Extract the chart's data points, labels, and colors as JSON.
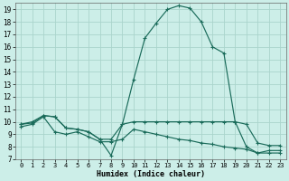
{
  "xlabel": "Humidex (Indice chaleur)",
  "background_color": "#cceee8",
  "grid_color": "#aad4cc",
  "line_color": "#1a6b5a",
  "xlim": [
    -0.5,
    23.5
  ],
  "ylim": [
    7,
    19.5
  ],
  "xticks": [
    0,
    1,
    2,
    3,
    4,
    5,
    6,
    7,
    8,
    9,
    10,
    11,
    12,
    13,
    14,
    15,
    16,
    17,
    18,
    19,
    20,
    21,
    22,
    23
  ],
  "yticks": [
    7,
    8,
    9,
    10,
    11,
    12,
    13,
    14,
    15,
    16,
    17,
    18,
    19
  ],
  "line1_x": [
    0,
    1,
    2,
    3,
    4,
    5,
    6,
    7,
    8,
    9,
    10,
    11,
    12,
    13,
    14,
    15,
    16,
    17,
    18,
    19,
    20,
    21,
    22,
    23
  ],
  "line1_y": [
    9.8,
    10.0,
    10.5,
    10.4,
    9.5,
    9.4,
    9.2,
    8.6,
    8.6,
    9.8,
    10.0,
    10.0,
    10.0,
    10.0,
    10.0,
    10.0,
    10.0,
    10.0,
    10.0,
    10.0,
    9.8,
    8.3,
    8.1,
    8.1
  ],
  "line2_x": [
    0,
    1,
    2,
    3,
    4,
    5,
    6,
    7,
    8,
    9,
    10,
    11,
    12,
    13,
    14,
    15,
    16,
    17,
    18,
    19,
    20,
    21,
    22,
    23
  ],
  "line2_y": [
    9.8,
    9.9,
    10.5,
    10.4,
    9.5,
    9.4,
    9.2,
    8.6,
    7.3,
    9.8,
    13.4,
    16.7,
    17.9,
    19.0,
    19.3,
    19.1,
    18.0,
    16.0,
    15.5,
    10.0,
    8.0,
    7.5,
    7.7,
    7.7
  ],
  "line3_x": [
    0,
    1,
    2,
    3,
    4,
    5,
    6,
    7,
    8,
    9,
    10,
    11,
    12,
    13,
    14,
    15,
    16,
    17,
    18,
    19,
    20,
    21,
    22,
    23
  ],
  "line3_y": [
    9.6,
    9.8,
    10.4,
    9.2,
    9.0,
    9.2,
    8.8,
    8.4,
    8.4,
    8.6,
    9.4,
    9.2,
    9.0,
    8.8,
    8.6,
    8.5,
    8.3,
    8.2,
    8.0,
    7.9,
    7.8,
    7.5,
    7.5,
    7.5
  ]
}
